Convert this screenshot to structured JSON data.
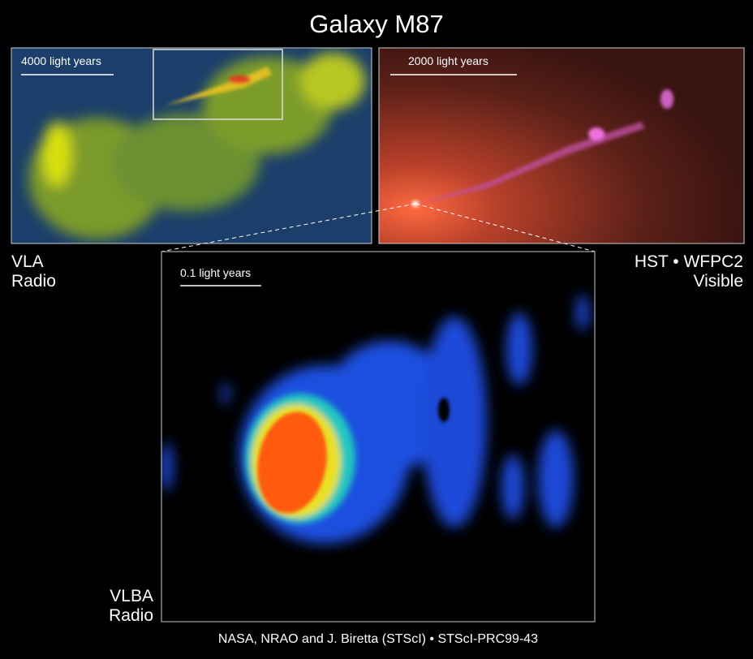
{
  "title": "Galaxy M87",
  "panels": [
    {
      "scale_label": "4000 light years",
      "caption": [
        "VLA",
        "Radio"
      ]
    },
    {
      "scale_label": "2000 light years",
      "caption": [
        "HST • WFPC2",
        "Visible"
      ]
    },
    {
      "scale_label": "0.1 light years",
      "caption": [
        "VLBA",
        "Radio"
      ]
    }
  ],
  "credit": "NASA, NRAO and J. Biretta (STScI) • STScI-PRC99-43"
}
